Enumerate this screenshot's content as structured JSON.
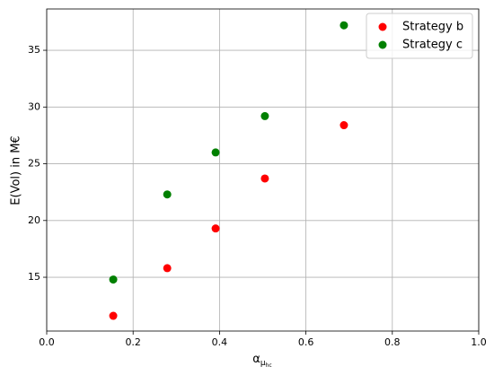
{
  "chart_data": {
    "type": "scatter",
    "x_label": {
      "symbol": "α",
      "subscript": "μ",
      "sub_subscript": "hc"
    },
    "y_label": "E(Vol) in M€",
    "series": [
      {
        "name": "Strategy b",
        "color": "#ff0000",
        "x": [
          0.154,
          0.279,
          0.391,
          0.505,
          0.688
        ],
        "values": [
          11.6,
          15.8,
          19.3,
          23.7,
          28.4
        ]
      },
      {
        "name": "Strategy c",
        "color": "#008000",
        "x": [
          0.154,
          0.279,
          0.391,
          0.505,
          0.688
        ],
        "values": [
          14.8,
          22.3,
          26.0,
          29.2,
          37.2
        ]
      }
    ],
    "xlim": [
      0,
      1
    ],
    "ylim": [
      10.26,
      38.64
    ],
    "xticks": [
      {
        "value": 0,
        "label": "0.0"
      },
      0.2,
      0.4,
      0.6,
      0.8,
      {
        "value": 1,
        "label": "1.0"
      }
    ],
    "yticks": [
      15,
      20,
      25,
      30,
      35
    ],
    "grid": true,
    "legend": "upper-right"
  }
}
